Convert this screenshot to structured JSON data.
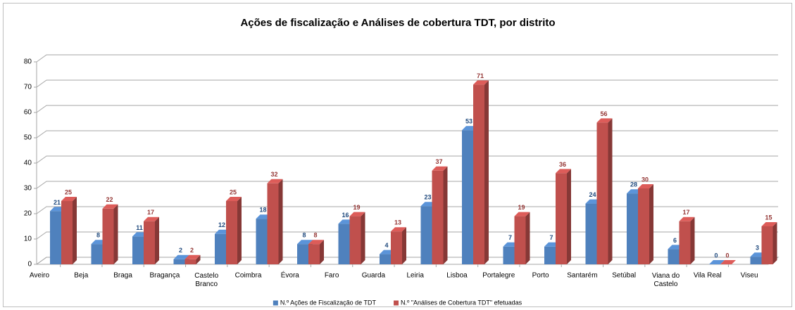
{
  "chart_data": {
    "type": "bar3d",
    "title": "Ações de fiscalização e Análises de cobertura TDT, por distrito",
    "categories": [
      "Aveiro",
      "Beja",
      "Braga",
      "Bragança",
      "Castelo Branco",
      "Coimbra",
      "Évora",
      "Faro",
      "Guarda",
      "Leiria",
      "Lisboa",
      "Portalegre",
      "Porto",
      "Santarém",
      "Setúbal",
      "Viana do Castelo",
      "Vila Real",
      "Viseu"
    ],
    "series": [
      {
        "name": "N.º Ações de Fiscalização de TDT",
        "color": "#4f81bd",
        "label_color": "#1f497d",
        "values": [
          21,
          8,
          11,
          2,
          12,
          18,
          8,
          16,
          4,
          23,
          53,
          7,
          7,
          24,
          28,
          6,
          0,
          3
        ]
      },
      {
        "name": "N.º \"Análises de Cobertura TDT\" efetuadas",
        "color": "#c0504d",
        "label_color": "#943634",
        "values": [
          25,
          22,
          17,
          2,
          25,
          32,
          8,
          19,
          13,
          37,
          71,
          19,
          36,
          56,
          30,
          17,
          0,
          15
        ]
      }
    ],
    "ylim": [
      0,
      80
    ],
    "yticks": [
      0,
      10,
      20,
      30,
      40,
      50,
      60,
      70,
      80
    ],
    "grid": true,
    "legend": "bottom"
  }
}
